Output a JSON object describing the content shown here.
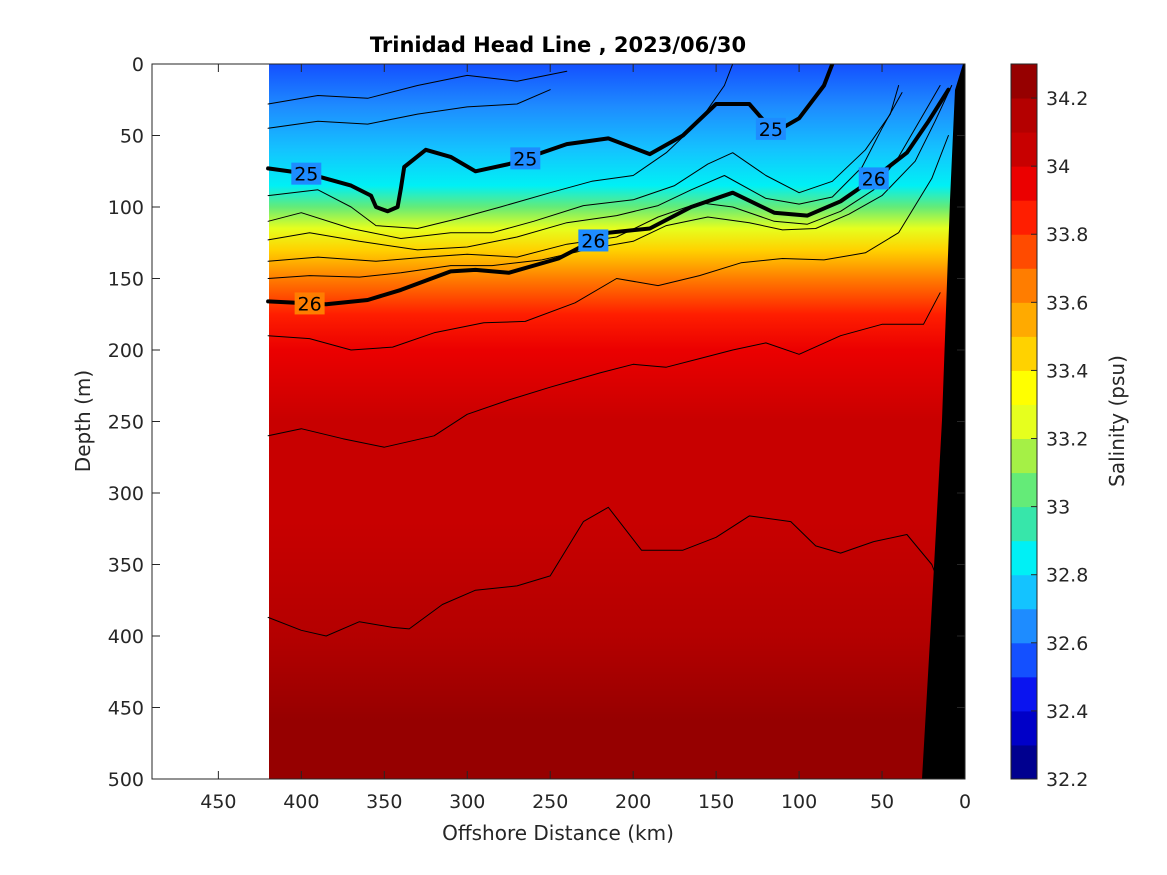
{
  "chart_data": {
    "type": "heatmap",
    "title": "Trinidad Head Line , 2023/06/30",
    "xlabel": "Offshore Distance (km)",
    "ylabel": "Depth (m)",
    "colorbar_label": "Salinity (psu)",
    "xlim": [
      490,
      0
    ],
    "ylim": [
      500,
      0
    ],
    "x_reversed": true,
    "y_reversed": true,
    "data_x_range": [
      420,
      0
    ],
    "x_ticks": [
      450,
      400,
      350,
      300,
      250,
      200,
      150,
      100,
      50,
      0
    ],
    "x_tick_labels": [
      "450",
      "400",
      "350",
      "300",
      "250",
      "200",
      "150",
      "100",
      "50",
      "0"
    ],
    "y_ticks": [
      0,
      50,
      100,
      150,
      200,
      250,
      300,
      350,
      400,
      450,
      500
    ],
    "y_tick_labels": [
      "0",
      "50",
      "100",
      "150",
      "200",
      "250",
      "300",
      "350",
      "400",
      "450",
      "500"
    ],
    "colorbar_range": [
      32.2,
      34.3
    ],
    "colorbar_step": 0.1,
    "colorbar_ticks": [
      32.2,
      32.4,
      32.6,
      32.8,
      33,
      33.2,
      33.4,
      33.6,
      33.8,
      34,
      34.2
    ],
    "colorbar_tick_labels": [
      "32.2",
      "32.4",
      "32.6",
      "32.8",
      "33",
      "33.2",
      "33.4",
      "33.6",
      "33.8",
      "34",
      "34.2"
    ],
    "colorbar_colors": [
      "#00008f",
      "#0000c8",
      "#0a14f0",
      "#1450ff",
      "#1e8cff",
      "#14c3ff",
      "#00f0f5",
      "#37e6aa",
      "#64eb78",
      "#a5f046",
      "#e6ff1e",
      "#ffff00",
      "#ffd200",
      "#ffaa00",
      "#ff7d00",
      "#ff4b00",
      "#ff1e00",
      "#eb0000",
      "#c80000",
      "#b40000",
      "#960000"
    ],
    "salinity_profile": {
      "depths": [
        0,
        30,
        60,
        85,
        100,
        115,
        130,
        150,
        175,
        200,
        250,
        320,
        400,
        460,
        500
      ],
      "values": [
        32.55,
        32.6,
        32.7,
        32.85,
        33.0,
        33.2,
        33.4,
        33.6,
        33.8,
        33.9,
        34.0,
        34.05,
        34.1,
        34.2,
        34.22
      ]
    },
    "contours": [
      {
        "label": "25",
        "bold": true,
        "points": [
          [
            420,
            73
          ],
          [
            395,
            77
          ],
          [
            370,
            85
          ],
          [
            358,
            92
          ],
          [
            355,
            100
          ],
          [
            348,
            103
          ],
          [
            342,
            100
          ],
          [
            340,
            87
          ],
          [
            338,
            72
          ],
          [
            325,
            60
          ],
          [
            310,
            65
          ],
          [
            295,
            75
          ],
          [
            275,
            70
          ],
          [
            240,
            56
          ],
          [
            215,
            52
          ],
          [
            190,
            63
          ],
          [
            170,
            50
          ],
          [
            150,
            28
          ],
          [
            130,
            28
          ],
          [
            115,
            48
          ],
          [
            100,
            38
          ],
          [
            85,
            15
          ],
          [
            80,
            0
          ]
        ]
      },
      {
        "label": "26",
        "bold": true,
        "points": [
          [
            420,
            166
          ],
          [
            385,
            168
          ],
          [
            360,
            165
          ],
          [
            340,
            158
          ],
          [
            310,
            145
          ],
          [
            295,
            144
          ],
          [
            275,
            146
          ],
          [
            245,
            136
          ],
          [
            215,
            118
          ],
          [
            190,
            115
          ],
          [
            165,
            100
          ],
          [
            140,
            90
          ],
          [
            115,
            104
          ],
          [
            95,
            106
          ],
          [
            75,
            96
          ],
          [
            55,
            80
          ],
          [
            35,
            62
          ],
          [
            22,
            40
          ],
          [
            10,
            18
          ]
        ]
      },
      {
        "points": [
          [
            420,
            28
          ],
          [
            390,
            22
          ],
          [
            360,
            24
          ],
          [
            330,
            15
          ],
          [
            300,
            8
          ],
          [
            270,
            12
          ],
          [
            240,
            5
          ]
        ]
      },
      {
        "points": [
          [
            420,
            45
          ],
          [
            390,
            40
          ],
          [
            360,
            42
          ],
          [
            330,
            35
          ],
          [
            300,
            30
          ],
          [
            270,
            28
          ],
          [
            250,
            18
          ]
        ]
      },
      {
        "points": [
          [
            420,
            92
          ],
          [
            390,
            88
          ],
          [
            370,
            100
          ],
          [
            355,
            113
          ],
          [
            330,
            115
          ],
          [
            305,
            108
          ],
          [
            280,
            100
          ],
          [
            250,
            90
          ],
          [
            225,
            82
          ],
          [
            200,
            78
          ],
          [
            180,
            62
          ],
          [
            160,
            40
          ],
          [
            145,
            15
          ],
          [
            140,
            0
          ]
        ]
      },
      {
        "points": [
          [
            420,
            110
          ],
          [
            400,
            104
          ],
          [
            370,
            115
          ],
          [
            340,
            122
          ],
          [
            310,
            118
          ],
          [
            285,
            118
          ],
          [
            260,
            110
          ],
          [
            230,
            99
          ],
          [
            200,
            95
          ],
          [
            175,
            85
          ],
          [
            155,
            70
          ],
          [
            140,
            62
          ],
          [
            120,
            78
          ],
          [
            100,
            90
          ],
          [
            80,
            82
          ],
          [
            60,
            60
          ],
          [
            45,
            35
          ],
          [
            40,
            15
          ]
        ]
      },
      {
        "points": [
          [
            420,
            123
          ],
          [
            395,
            118
          ],
          [
            365,
            124
          ],
          [
            330,
            130
          ],
          [
            300,
            128
          ],
          [
            270,
            121
          ],
          [
            240,
            111
          ],
          [
            210,
            106
          ],
          [
            185,
            99
          ],
          [
            165,
            88
          ],
          [
            145,
            78
          ],
          [
            120,
            94
          ],
          [
            100,
            98
          ],
          [
            80,
            93
          ],
          [
            62,
            72
          ],
          [
            50,
            45
          ],
          [
            38,
            20
          ]
        ]
      },
      {
        "points": [
          [
            420,
            138
          ],
          [
            390,
            135
          ],
          [
            355,
            138
          ],
          [
            325,
            135
          ],
          [
            300,
            133
          ],
          [
            270,
            135
          ],
          [
            240,
            126
          ],
          [
            210,
            121
          ],
          [
            185,
            107
          ],
          [
            160,
            97
          ],
          [
            140,
            100
          ],
          [
            115,
            110
          ],
          [
            95,
            112
          ],
          [
            75,
            103
          ],
          [
            55,
            88
          ],
          [
            40,
            65
          ],
          [
            25,
            35
          ],
          [
            15,
            15
          ]
        ]
      },
      {
        "points": [
          [
            420,
            150
          ],
          [
            395,
            148
          ],
          [
            365,
            149
          ],
          [
            340,
            146
          ],
          [
            310,
            141
          ],
          [
            285,
            141
          ],
          [
            255,
            137
          ],
          [
            225,
            129
          ],
          [
            200,
            124
          ],
          [
            180,
            113
          ],
          [
            155,
            107
          ],
          [
            130,
            111
          ],
          [
            110,
            116
          ],
          [
            90,
            115
          ],
          [
            70,
            105
          ],
          [
            50,
            92
          ],
          [
            30,
            68
          ],
          [
            18,
            40
          ],
          [
            8,
            15
          ]
        ]
      },
      {
        "points": [
          [
            420,
            190
          ],
          [
            395,
            192
          ],
          [
            370,
            200
          ],
          [
            345,
            198
          ],
          [
            320,
            188
          ],
          [
            290,
            181
          ],
          [
            265,
            180
          ],
          [
            235,
            167
          ],
          [
            210,
            150
          ],
          [
            185,
            155
          ],
          [
            160,
            148
          ],
          [
            135,
            139
          ],
          [
            110,
            136
          ],
          [
            85,
            137
          ],
          [
            60,
            132
          ],
          [
            40,
            118
          ],
          [
            20,
            80
          ],
          [
            10,
            50
          ]
        ]
      },
      {
        "points": [
          [
            420,
            260
          ],
          [
            400,
            255
          ],
          [
            375,
            262
          ],
          [
            350,
            268
          ],
          [
            320,
            260
          ],
          [
            300,
            245
          ],
          [
            275,
            235
          ],
          [
            250,
            226
          ],
          [
            220,
            216
          ],
          [
            200,
            210
          ],
          [
            180,
            212
          ],
          [
            160,
            206
          ],
          [
            140,
            200
          ],
          [
            120,
            195
          ],
          [
            100,
            203
          ],
          [
            75,
            190
          ],
          [
            50,
            182
          ],
          [
            25,
            182
          ],
          [
            15,
            160
          ]
        ]
      },
      {
        "points": [
          [
            420,
            387
          ],
          [
            400,
            396
          ],
          [
            385,
            400
          ],
          [
            365,
            390
          ],
          [
            345,
            394
          ],
          [
            335,
            395
          ],
          [
            315,
            378
          ],
          [
            295,
            368
          ],
          [
            270,
            365
          ],
          [
            250,
            358
          ],
          [
            230,
            320
          ],
          [
            215,
            310
          ],
          [
            195,
            340
          ],
          [
            170,
            340
          ],
          [
            150,
            331
          ],
          [
            130,
            316
          ],
          [
            105,
            320
          ],
          [
            90,
            337
          ],
          [
            75,
            342
          ],
          [
            55,
            334
          ],
          [
            35,
            329
          ],
          [
            20,
            350
          ],
          [
            10,
            380
          ]
        ]
      }
    ]
  }
}
